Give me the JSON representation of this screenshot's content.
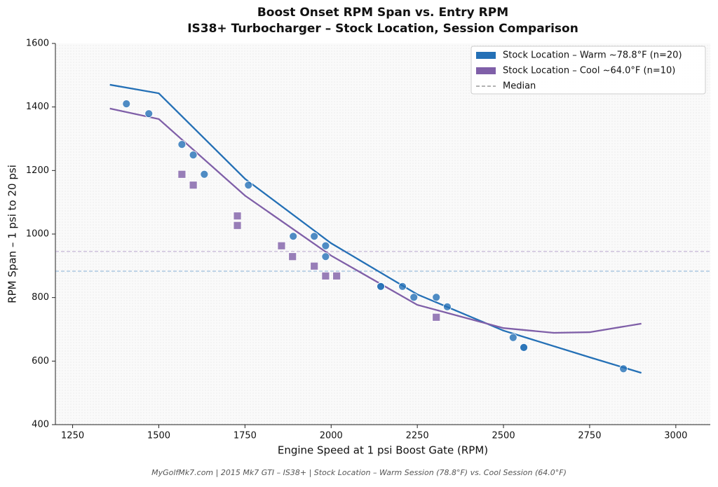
{
  "chart_data": {
    "type": "scatter",
    "title": "Boost Onset RPM Span vs. Entry RPM",
    "subtitle": "IS38+ Turbocharger – Stock Location, Session Comparison",
    "x_label": "Engine Speed at 1 psi Boost Gate (RPM)",
    "y_label": "RPM Span – 1 psi to 20 psi",
    "footer": "MyGolfMk7.com  |  2015 Mk7 GTI – IS38+  |  Stock Location – Warm Session (78.8°F) vs. Cool Session (64.0°F)",
    "xlim": [
      1200,
      3100
    ],
    "ylim": [
      400,
      1600
    ],
    "xticks": [
      1250,
      1500,
      1750,
      2000,
      2250,
      2500,
      2750,
      3000
    ],
    "yticks": [
      400,
      600,
      800,
      1000,
      1200,
      1400,
      1600
    ],
    "median_label": "Median",
    "legend": "upper right",
    "series": [
      {
        "name": "Stock Location – Warm ~78.8°F (n=20)",
        "color": "#2470b6",
        "marker": "circle",
        "x": [
          1406,
          1471,
          1567,
          1600,
          1632,
          1760,
          1890,
          1951,
          1984,
          1984,
          2144,
          2144,
          2207,
          2240,
          2305,
          2337,
          2528,
          2559,
          2559,
          2848
        ],
        "values": [
          1410,
          1379,
          1282,
          1249,
          1188,
          1154,
          993,
          993,
          963,
          929,
          835,
          835,
          835,
          801,
          801,
          771,
          674,
          643,
          643,
          576
        ],
        "median": 883,
        "fit": {
          "x": [
            1358,
            1500,
            1750,
            2000,
            2250,
            2500,
            2750,
            2900
          ],
          "values": [
            1470,
            1443,
            1174,
            971,
            810,
            696,
            612,
            563
          ]
        }
      },
      {
        "name": "Stock Location – Cool ~64.0°F (n=10)",
        "color": "#7f5fa8",
        "marker": "square",
        "x": [
          1567,
          1600,
          1728,
          1728,
          1856,
          1888,
          1951,
          1984,
          2016,
          2305
        ],
        "values": [
          1188,
          1154,
          1057,
          1027,
          963,
          929,
          899,
          868,
          868,
          738
        ],
        "median": 945,
        "fit": {
          "x": [
            1358,
            1500,
            1750,
            2000,
            2250,
            2500,
            2646,
            2750,
            2900
          ],
          "values": [
            1395,
            1362,
            1121,
            932,
            777,
            704,
            689,
            691,
            718
          ]
        }
      }
    ]
  }
}
